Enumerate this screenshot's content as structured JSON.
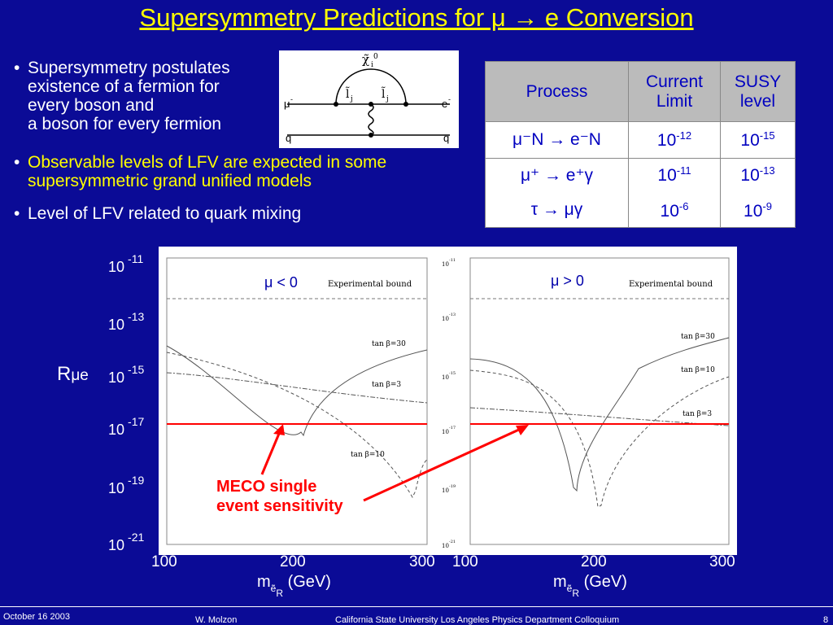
{
  "title": "Supersymmetry Predictions for μ → e Conversion",
  "bullets": [
    {
      "l1": "Supersymmetry postulates",
      "l2": "existence of a fermion for",
      "l3": "every boson and",
      "l4": "a boson for every fermion"
    },
    {
      "l1": "Observable levels of LFV are expected in some",
      "l2": "supersymmetric grand unified models",
      "color": "#ffff00"
    },
    {
      "l1": "Level of LFV related to quark mixing"
    }
  ],
  "diagram": {
    "top": "χ̃",
    "top_sub": "i",
    "top_sup": "0",
    "left_slepton": "l̃",
    "left_sub": "j",
    "right_slepton": "l̃",
    "right_sub": "j",
    "in_lepton": "μ",
    "in_sup": "-",
    "out_lepton": "e",
    "out_sup": "-",
    "quark_in": "q",
    "quark_out": "q"
  },
  "table": {
    "headers": [
      "Process",
      "Current Limit",
      "SUSY level"
    ],
    "rows": [
      {
        "process": "μ⁻N → e⁻N",
        "current": "10",
        "current_exp": "-12",
        "susy": "10",
        "susy_exp": "-15"
      },
      {
        "process1": "μ⁺ → e⁺γ",
        "current1": "10",
        "current1_exp": "-11",
        "susy1": "10",
        "susy1_exp": "-13",
        "process2": "τ → μγ",
        "current2": "10",
        "current2_exp": "-6",
        "susy2": "10",
        "susy2_exp": "-9"
      }
    ]
  },
  "chart_data": [
    {
      "type": "line",
      "panel": "left",
      "annotation": "μ < 0",
      "bound_label": "Experimental bound",
      "ylabel": "Rμe",
      "xlabel": "m(ẽR) (GeV)",
      "xticks": [
        100,
        200,
        300
      ],
      "yticks": [
        "10 -11",
        "10 -13",
        "10 -15",
        "10 -17",
        "10 -19",
        "10 -21"
      ],
      "series": [
        {
          "name": "tan β=30"
        },
        {
          "name": "tan β=3"
        },
        {
          "name": "tan β=10"
        }
      ]
    },
    {
      "type": "line",
      "panel": "right",
      "annotation": "μ > 0",
      "bound_label": "Experimental bound",
      "xlabel": "m(ẽR) (GeV)",
      "xticks": [
        100,
        200,
        300
      ],
      "yticks": [
        "10-11",
        "10-13",
        "10-15",
        "10-17",
        "10-19",
        "10-21"
      ],
      "series": [
        {
          "name": "tan β=30"
        },
        {
          "name": "tan β=10"
        },
        {
          "name": "tan β=3"
        }
      ]
    }
  ],
  "plot_labels": {
    "ylabel_main": "R",
    "ylabel_sub": "μe",
    "left_y": [
      {
        "b": "10",
        "e": "-11"
      },
      {
        "b": "10",
        "e": "-13"
      },
      {
        "b": "10",
        "e": "-15"
      },
      {
        "b": "10",
        "e": "-17"
      },
      {
        "b": "10",
        "e": "-19"
      },
      {
        "b": "10",
        "e": "-21"
      }
    ],
    "x_left": [
      "100",
      "200",
      "300"
    ],
    "x_right": [
      "100",
      "200",
      "300"
    ],
    "xlabel_left": "m",
    "xlabel_right": "m",
    "xlabel_sub": "ẽ",
    "xlabel_sub2": "R",
    "xlabel_unit": "(GeV)",
    "left_annot": "μ < 0",
    "right_annot": "μ > 0",
    "bound": "Experimental bound",
    "left_curves": [
      "tan β=30",
      "tan β=3",
      "tan β=10"
    ],
    "right_curves": [
      "tan β=30",
      "tan β=10",
      "tan β=3"
    ],
    "right_ticks": [
      "10",
      "10",
      "10",
      "10",
      "10",
      "10"
    ],
    "right_exps": [
      "-11",
      "-13",
      "-15",
      "-17",
      "-19",
      "-21"
    ]
  },
  "meco": {
    "line1": "MECO single",
    "line2": "event sensitivity",
    "color": "#ff0000"
  },
  "footer": {
    "date": "October 16 2003",
    "author": "W. Molzon",
    "venue": "California State University Los Angeles Physics Department  Colloquium",
    "page": "8"
  }
}
